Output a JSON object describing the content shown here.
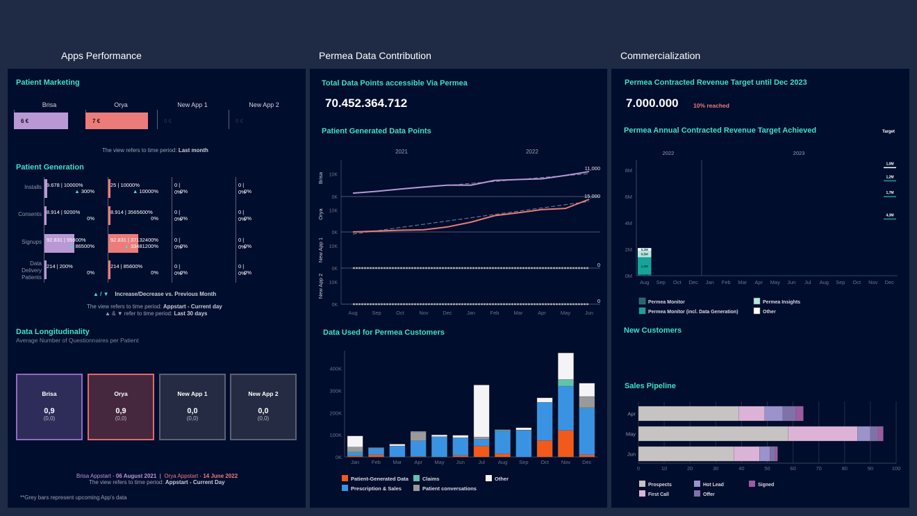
{
  "columns": {
    "apps": "Apps Performance",
    "data": "Permea Data Contribution",
    "commercial": "Commercialization"
  },
  "colors": {
    "brisa": "#b998d4",
    "orya": "#ec7c7a",
    "accent": "#3ee0c8",
    "panel_bg": "#010d2d",
    "page_bg": "#1f2a45"
  },
  "patient_marketing": {
    "title": "Patient Marketing",
    "apps": [
      {
        "name": "Brisa",
        "value": "6 €",
        "amount": 6
      },
      {
        "name": "Orya",
        "value": "7 €",
        "amount": 7
      },
      {
        "name": "New App 1",
        "value": "0 €",
        "amount": 0
      },
      {
        "name": "New App 2",
        "value": "0 €",
        "amount": 0
      }
    ],
    "note_prefix": "The view refers to time period: ",
    "note_period": "Last month"
  },
  "patient_generation": {
    "title": "Patient Generation",
    "rows": [
      {
        "label": "Installs",
        "cells": [
          {
            "main": "9.678 | 10000%",
            "delta": "300%",
            "trend": "up",
            "value": 9678
          },
          {
            "main": "25 | 10000%",
            "delta": "10000%",
            "trend": "up",
            "value": 25
          },
          {
            "main": "0 | 0%",
            "delta": "0%",
            "trend": "",
            "value": 0
          },
          {
            "main": "0 | 0%",
            "delta": "0%",
            "trend": "",
            "value": 0
          }
        ]
      },
      {
        "label": "Consents",
        "cells": [
          {
            "main": "8.914 | 9200%",
            "delta": "0%",
            "trend": "",
            "value": 8914
          },
          {
            "main": "8.914 | 3565600%",
            "delta": "0%",
            "trend": "",
            "value": 8914
          },
          {
            "main": "0 | 0%",
            "delta": "0%",
            "trend": "",
            "value": 0
          },
          {
            "main": "0 | 0%",
            "delta": "0%",
            "trend": "",
            "value": 0
          }
        ]
      },
      {
        "label": "Signups",
        "cells": [
          {
            "main": "92.831 | 95900%",
            "delta": "86500%",
            "trend": "up",
            "value": 92831
          },
          {
            "main": "92.831 | 37132400%",
            "delta": "33481200%",
            "trend": "up",
            "value": 92831
          },
          {
            "main": "0 | 0%",
            "delta": "0%",
            "trend": "",
            "value": 0
          },
          {
            "main": "0 | 0%",
            "delta": "0%",
            "trend": "",
            "value": 0
          }
        ]
      },
      {
        "label": "Data Delivery Patients",
        "cells": [
          {
            "main": "214 | 200%",
            "delta": "0%",
            "trend": "",
            "value": 214
          },
          {
            "main": "214 | 85600%",
            "delta": "0%",
            "trend": "",
            "value": 214
          },
          {
            "main": "0 | 0%",
            "delta": "0%",
            "trend": "",
            "value": 0
          },
          {
            "main": "0 | 0%",
            "delta": "0%",
            "trend": "",
            "value": 0
          }
        ]
      }
    ],
    "legend_symbols": "▲ / ▼",
    "legend_text": "Increase/Decrease  vs. Previous Month",
    "note_prefix": "The view refers to time period: ",
    "note_period": "Appstart - Current day",
    "note2_prefix": "▲ & ▼ refer to time period: ",
    "note2_period": "Last 30 days"
  },
  "data_longitudinality": {
    "title": "Data Longitudinality",
    "subtitle": "Average Number of Questionnaires per Patient",
    "cards": [
      {
        "name": "Brisa",
        "value": "0,9",
        "sub": "(0,0)"
      },
      {
        "name": "Orya",
        "value": "0,9",
        "sub": "(0,0)"
      },
      {
        "name": "New App 1",
        "value": "0,0",
        "sub": "(0,0)"
      },
      {
        "name": "New App 2",
        "value": "0,0",
        "sub": "(0,0)"
      }
    ],
    "brisa_start_label": "Brisa Appstart - ",
    "brisa_start_date": "06 August 2021",
    "separator": "|",
    "orya_start_label": "Orya Appstart - ",
    "orya_start_date": "14 June 2022",
    "note_prefix": "The view refers to time period: ",
    "note_period": "Appstart - Current Day",
    "footnote": "**Grey bars represent upcoming App's data"
  },
  "total_data_points": {
    "title": "Total Data Points accessible Via Permea",
    "value": "70.452.364.712"
  },
  "revenue_target": {
    "title": "Permea Contracted Revenue Target until Dec 2023",
    "value": "7.000.000",
    "reached": "10% reached"
  },
  "new_customers": {
    "title": "New Customers"
  },
  "chart_data": [
    {
      "id": "patient_generated_data_points",
      "type": "line",
      "title": "Patient Generated Data Points",
      "year_labels": [
        "2021",
        "2022"
      ],
      "x": [
        "Aug",
        "Sep",
        "Oct",
        "Nov",
        "Dec",
        "Jan",
        "Feb",
        "Mar",
        "Apr",
        "May",
        "Jun"
      ],
      "ytick_labels": [
        "0K",
        "10K"
      ],
      "ylim": [
        0,
        15000
      ],
      "series": [
        {
          "name": "Brisa",
          "color": "#b998d4",
          "values": [
            1500,
            2300,
            3300,
            4200,
            5000,
            5000,
            7100,
            7500,
            7800,
            9300,
            11000
          ],
          "end_label": "11,000"
        },
        {
          "name": "Orya",
          "color": "#ec7c7a",
          "values": [
            0,
            400,
            800,
            1000,
            2300,
            4500,
            7500,
            8800,
            10300,
            10800,
            15000
          ],
          "end_label": "15,000"
        },
        {
          "name": "New App 1",
          "color": "#aaaaaa",
          "values": [
            0,
            0,
            0,
            0,
            0,
            0,
            0,
            0,
            0,
            0,
            0
          ],
          "end_label": "0"
        },
        {
          "name": "New App 2",
          "color": "#aaaaaa",
          "values": [
            0,
            0,
            0,
            0,
            0,
            0,
            0,
            0,
            0,
            0,
            0
          ],
          "end_label": "0"
        }
      ]
    },
    {
      "id": "data_used_for_permea_customers",
      "type": "bar",
      "stacked": true,
      "title": "Data Used for Permea Customers",
      "categories": [
        "Jan",
        "Feb",
        "Mar",
        "Apr",
        "May",
        "Jun",
        "Jul",
        "Aug",
        "Sep",
        "Oct",
        "Nov",
        "Dec"
      ],
      "ylim": [
        0,
        480000
      ],
      "yticks": [
        0,
        100000,
        200000,
        300000,
        400000
      ],
      "ytick_labels": [
        "0K",
        "100K",
        "200K",
        "300K",
        "400K"
      ],
      "series": [
        {
          "name": "Patient-Generated Data",
          "color": "#f25a1c",
          "values": [
            5000,
            10000,
            0,
            3000,
            0,
            7000,
            50000,
            15000,
            0,
            75000,
            120000,
            10000
          ]
        },
        {
          "name": "Prescription & Sales",
          "color": "#3a93e2",
          "values": [
            15000,
            30000,
            50000,
            70000,
            92000,
            80000,
            30000,
            103000,
            120000,
            172000,
            200000,
            210000
          ]
        },
        {
          "name": "Claims",
          "color": "#5ec4ac",
          "values": [
            5000,
            0,
            0,
            0,
            0,
            0,
            0,
            3000,
            2000,
            0,
            30000,
            5000
          ]
        },
        {
          "name": "Patient conversations",
          "color": "#9a9a9e",
          "values": [
            20000,
            0,
            0,
            40000,
            0,
            0,
            10000,
            0,
            0,
            0,
            0,
            48000
          ]
        },
        {
          "name": "Other",
          "color": "#f4f4f6",
          "values": [
            50000,
            2000,
            8000,
            2000,
            8000,
            11000,
            235000,
            2000,
            10000,
            20000,
            120000,
            60000
          ]
        }
      ],
      "legend": [
        "Patient-Generated Data",
        "Claims",
        "Other",
        "Prescription & Sales",
        "Patient conversations"
      ]
    },
    {
      "id": "annual_revenue_target",
      "type": "bar",
      "stacked": true,
      "title": "Permea Annual Contracted Revenue Target Achieved",
      "target_label": "Target",
      "year_labels": [
        "2022",
        "2023"
      ],
      "categories": [
        "Aug",
        "Sep",
        "Oct",
        "Dec",
        "Jan",
        "Feb",
        "Mar",
        "Apr",
        "May",
        "Jun",
        "Jul",
        "Aug",
        "Sep",
        "Oct",
        "Nov",
        "Dec"
      ],
      "ylim": [
        0,
        8800000
      ],
      "yticks": [
        0,
        2000000,
        4000000,
        6000000,
        8000000
      ],
      "ytick_labels": [
        "0M",
        "2M",
        "4M",
        "6M",
        "8M"
      ],
      "series": [
        {
          "name": "Permea Monitor",
          "color": "#1e6a72",
          "values": [
            100000
          ],
          "label": "0,1M"
        },
        {
          "name": "Permea Monitor (incl. Data Generation)",
          "color": "#17a39a",
          "values": [
            1300000
          ],
          "label": "1,3M"
        },
        {
          "name": "Permea Insights",
          "color": "#b7e6df",
          "values": [
            500000
          ],
          "label": "0,5M"
        },
        {
          "name": "Other",
          "color": "#ffffff",
          "values": [
            200000
          ],
          "label": "0,2M"
        }
      ],
      "targets": [
        {
          "label": "4,3M",
          "cumulative": 4300000,
          "color": "#17a39a"
        },
        {
          "label": "1,7M",
          "cumulative": 6000000,
          "color": "#17a39a"
        },
        {
          "label": "1,2M",
          "cumulative": 7200000,
          "color": "#17a39a"
        },
        {
          "label": "1,0M",
          "cumulative": 8200000,
          "color": "#ffffff"
        }
      ],
      "legend": [
        "Permea Monitor",
        "Permea Insights",
        "Permea Monitor (incl. Data Generation)",
        "Other"
      ]
    },
    {
      "id": "sales_pipeline",
      "type": "bar",
      "orientation": "horizontal",
      "stacked": true,
      "title": "Sales Pipeline",
      "categories": [
        "Apr",
        "May",
        "Jun"
      ],
      "xlim": [
        0,
        100
      ],
      "xticks": [
        0,
        10,
        20,
        30,
        40,
        50,
        60,
        70,
        80,
        90,
        100
      ],
      "series": [
        {
          "name": "Prospects",
          "color": "#c7c3c3",
          "values": [
            39,
            58,
            37
          ]
        },
        {
          "name": "First Call",
          "color": "#dcb3d6",
          "values": [
            10,
            27,
            10
          ]
        },
        {
          "name": "Hot Lead",
          "color": "#9b93cc",
          "values": [
            7,
            5,
            4
          ]
        },
        {
          "name": "Offer",
          "color": "#7f72a8",
          "values": [
            5,
            3,
            2
          ]
        },
        {
          "name": "Signed",
          "color": "#9e5aa0",
          "values": [
            3,
            2,
            1
          ]
        }
      ],
      "legend": [
        "Prospects",
        "Hot Lead",
        "Signed",
        "First Call",
        "Offer"
      ]
    }
  ]
}
